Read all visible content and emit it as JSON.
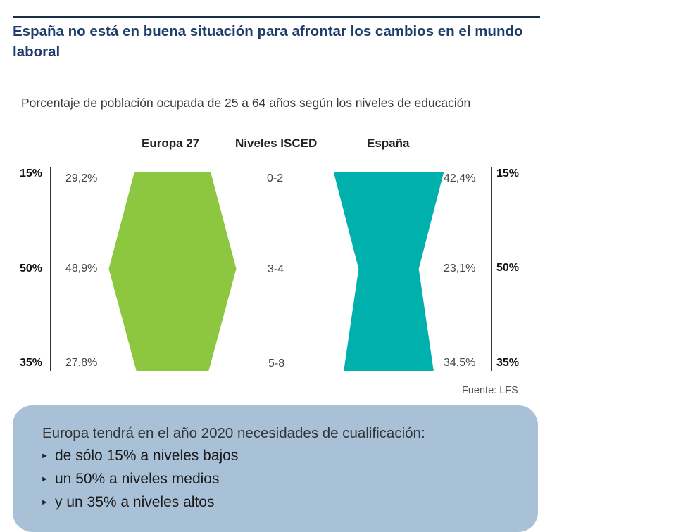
{
  "title": "España no está en buena situación para afrontar los cambios en el mundo laboral",
  "chart_data": {
    "type": "table",
    "subtitle": "Porcentaje de población ocupada de 25 a 64 años según los niveles de educación",
    "headers": {
      "left": "Europa 27",
      "middle": "Niveles ISCED",
      "right": "España"
    },
    "levels": [
      "0-2",
      "3-4",
      "5-8"
    ],
    "targets": [
      "15%",
      "50%",
      "35%"
    ],
    "series": [
      {
        "name": "Europa 27",
        "values": [
          29.2,
          48.9,
          27.8
        ],
        "labels": [
          "29,2%",
          "48,9%",
          "27,8%"
        ],
        "color": "#8dc63f"
      },
      {
        "name": "España",
        "values": [
          42.4,
          23.1,
          34.5
        ],
        "labels": [
          "42,4%",
          "23,1%",
          "34,5%"
        ],
        "color": "#00b0ad"
      }
    ],
    "source": "Fuente: LFS"
  },
  "info_box": {
    "intro": "Europa tendrá en el año 2020 necesidades de cualificación:",
    "bullets": [
      "de sólo 15% a niveles bajos",
      "un 50% a niveles medios",
      "y un 35% a niveles altos"
    ]
  }
}
